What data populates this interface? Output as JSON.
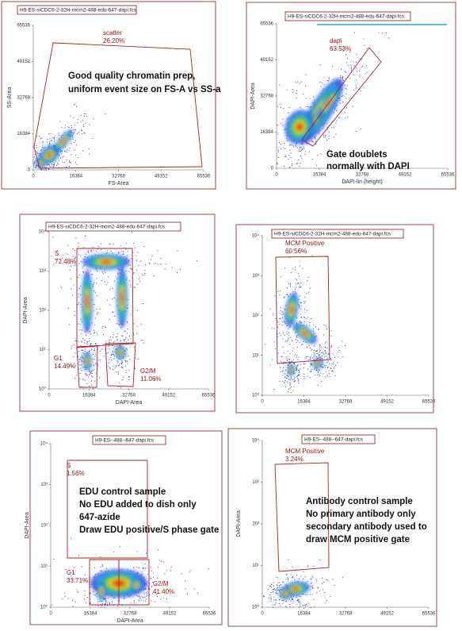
{
  "panels": [
    {
      "title": "H9-ES-siCDC6-2-32H-mcm2-488-edu-647-dapi.fcs",
      "y_label": "SS-Area",
      "x_label": "FS-Area",
      "y_ticks": [
        "0",
        "16384",
        "32768",
        "49152",
        "65536"
      ],
      "x_ticks": [
        "0",
        "16384",
        "32768",
        "49152",
        "65536"
      ],
      "gates": [
        {
          "name": "scatter",
          "percent": "26.20%"
        }
      ],
      "annotation": [
        "Good quality chromatin prep,",
        "uniform event size on FS-A vs SS-a"
      ]
    },
    {
      "title": "H9-ES-siCDC6-2-32H-mcm2-488-edu-647-dapi.fcs",
      "y_label": "DAPI-Area",
      "x_label": "DAPI-lin (height)",
      "y_ticks": [
        "0",
        "16384",
        "32768",
        "49152",
        "65536"
      ],
      "x_ticks": [
        "0",
        "16384",
        "32768",
        "49152",
        "65536"
      ],
      "gates": [
        {
          "name": "dapi",
          "percent": "63.53%"
        }
      ],
      "annotation": [
        "Gate doublets",
        "normally with DAPI"
      ]
    },
    {
      "title": "H9-ES-siCDC6-2-32H-mcm2-488-edu-647-dapi.fcs",
      "y_label": "DAPI-Area",
      "x_label": "DAPI-Area",
      "y_ticks": [
        "10⁰",
        "10¹",
        "10²",
        "10³",
        "10⁴"
      ],
      "x_ticks": [
        "0",
        "16384",
        "32768",
        "49152",
        "65536"
      ],
      "gates": [
        {
          "name": "S",
          "percent": "72.48%"
        },
        {
          "name": "G1",
          "percent": "14.49%"
        },
        {
          "name": "G2/M",
          "percent": "11.06%"
        }
      ],
      "annotation": []
    },
    {
      "title": "H9-ES-siCDC6-2-32H-mcm2-488-edu-647-dapi.fcs",
      "y_ticks": [
        "10⁰",
        "10¹",
        "10²",
        "10³",
        "10⁴"
      ],
      "x_ticks": [
        "0",
        "16384",
        "32768",
        "49152",
        "65536"
      ],
      "gates": [
        {
          "name": "MCM Positive",
          "percent": "60.56%"
        }
      ],
      "annotation": []
    },
    {
      "title": "H9-ES--488--647-dapi.fcs",
      "y_label": "DAPI-Area",
      "x_label": "DAPI-Area",
      "y_ticks": [
        "10⁰",
        "10¹",
        "10²",
        "10³",
        "10⁴"
      ],
      "x_ticks": [
        "0",
        "16384",
        "32768",
        "49152",
        "65536"
      ],
      "gates": [
        {
          "name": "S",
          "percent": "1.56%"
        },
        {
          "name": "G1",
          "percent": "33.71%"
        },
        {
          "name": "G2/M",
          "percent": "41.40%"
        }
      ],
      "annotation": [
        "EDU control sample",
        "No EDU added to dish only",
        "647-azide",
        "Draw EDU positive/S phase gate"
      ]
    },
    {
      "title": "H9-ES--488--647-dapi.fcs",
      "y_label": "DAPI-Area",
      "y_ticks": [
        "10⁰",
        "10¹",
        "10²",
        "10³",
        "10⁴"
      ],
      "x_ticks": [
        "0",
        "16384",
        "32768",
        "49152",
        "65536"
      ],
      "gates": [
        {
          "name": "MCM Positive",
          "percent": "3.24%"
        }
      ],
      "annotation": [
        "Antibody control sample",
        "No primary antibody only",
        "secondary antibody used to",
        "draw MCM positive gate"
      ]
    }
  ]
}
